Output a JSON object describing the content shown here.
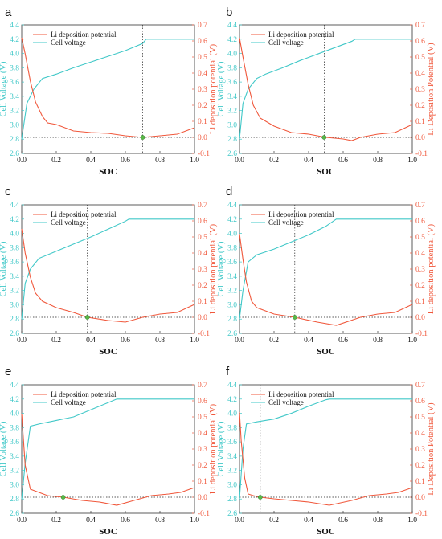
{
  "figure": {
    "colors": {
      "voltage": "#41c8c8",
      "li_potential": "#f0583c",
      "axis": "#333333",
      "marker": "#58b848"
    },
    "axes": {
      "x_label": "SOC",
      "left_label": "Cell Voltage (V)",
      "right_label_a": "Li deposition potential (V)",
      "right_label_b": "Li Deposition Potential (V)",
      "x_ticks": [
        "0.0",
        "0.2",
        "0.4",
        "0.6",
        "0.8",
        "1.0"
      ],
      "left_ticks": [
        "2.6",
        "2.8",
        "3.0",
        "3.2",
        "3.4",
        "3.6",
        "3.8",
        "4.0",
        "4.2",
        "4.4"
      ],
      "right_ticks": [
        "-0.1",
        "0.0",
        "0.1",
        "0.2",
        "0.3",
        "0.4",
        "0.5",
        "0.6",
        "0.7"
      ]
    },
    "legend": {
      "li_label": "Li deposition potential",
      "voltage_label": "Cell voltage"
    }
  },
  "chart_data": [
    {
      "panel": "a",
      "type": "line",
      "marker_soc": 0.7,
      "right_label_key": "a",
      "xlim": [
        0,
        1
      ],
      "ylim_left": [
        2.6,
        4.4
      ],
      "ylim_right": [
        -0.1,
        0.7
      ],
      "voltage": {
        "x": [
          0,
          0.03,
          0.07,
          0.12,
          0.2,
          0.3,
          0.4,
          0.5,
          0.6,
          0.7,
          0.72,
          1.0
        ],
        "y": [
          2.8,
          3.3,
          3.5,
          3.65,
          3.71,
          3.8,
          3.88,
          3.96,
          4.04,
          4.14,
          4.2,
          4.2
        ]
      },
      "li": {
        "x": [
          0,
          0.02,
          0.05,
          0.08,
          0.12,
          0.15,
          0.2,
          0.3,
          0.4,
          0.5,
          0.6,
          0.7,
          0.8,
          0.9,
          1.0
        ],
        "y": [
          0.62,
          0.52,
          0.35,
          0.22,
          0.13,
          0.09,
          0.08,
          0.04,
          0.03,
          0.025,
          0.01,
          0.0,
          0.01,
          0.02,
          0.06
        ]
      }
    },
    {
      "panel": "b",
      "type": "line",
      "marker_soc": 0.49,
      "right_label_key": "b",
      "xlim": [
        0,
        1
      ],
      "ylim_left": [
        2.6,
        4.4
      ],
      "ylim_right": [
        -0.1,
        0.7
      ],
      "voltage": {
        "x": [
          0,
          0.02,
          0.05,
          0.1,
          0.15,
          0.25,
          0.35,
          0.45,
          0.55,
          0.65,
          0.67,
          1.0
        ],
        "y": [
          2.8,
          3.3,
          3.5,
          3.65,
          3.71,
          3.8,
          3.9,
          3.99,
          4.08,
          4.17,
          4.2,
          4.2
        ]
      },
      "li": {
        "x": [
          0,
          0.02,
          0.05,
          0.08,
          0.12,
          0.2,
          0.3,
          0.4,
          0.5,
          0.6,
          0.65,
          0.7,
          0.8,
          0.9,
          1.0
        ],
        "y": [
          0.62,
          0.5,
          0.33,
          0.2,
          0.12,
          0.07,
          0.03,
          0.02,
          0.0,
          -0.01,
          -0.02,
          0.0,
          0.02,
          0.03,
          0.08
        ]
      }
    },
    {
      "panel": "c",
      "type": "line",
      "marker_soc": 0.38,
      "right_label_key": "a",
      "xlim": [
        0,
        1
      ],
      "ylim_left": [
        2.6,
        4.4
      ],
      "ylim_right": [
        -0.1,
        0.7
      ],
      "voltage": {
        "x": [
          0,
          0.02,
          0.05,
          0.1,
          0.2,
          0.3,
          0.4,
          0.5,
          0.6,
          0.62,
          1.0
        ],
        "y": [
          2.8,
          3.3,
          3.5,
          3.65,
          3.75,
          3.85,
          3.95,
          4.06,
          4.17,
          4.2,
          4.2
        ]
      },
      "li": {
        "x": [
          0,
          0.02,
          0.05,
          0.08,
          0.12,
          0.2,
          0.3,
          0.38,
          0.5,
          0.6,
          0.7,
          0.8,
          0.9,
          1.0
        ],
        "y": [
          0.55,
          0.4,
          0.25,
          0.15,
          0.1,
          0.06,
          0.03,
          0.0,
          -0.02,
          -0.03,
          0.0,
          0.02,
          0.03,
          0.08
        ]
      }
    },
    {
      "panel": "d",
      "type": "line",
      "marker_soc": 0.32,
      "right_label_key": "a",
      "xlim": [
        0,
        1
      ],
      "ylim_left": [
        2.6,
        4.4
      ],
      "ylim_right": [
        -0.1,
        0.7
      ],
      "voltage": {
        "x": [
          0,
          0.02,
          0.05,
          0.1,
          0.2,
          0.3,
          0.4,
          0.5,
          0.56,
          1.0
        ],
        "y": [
          2.8,
          3.2,
          3.6,
          3.7,
          3.78,
          3.88,
          3.98,
          4.1,
          4.2,
          4.2
        ]
      },
      "li": {
        "x": [
          0,
          0.02,
          0.04,
          0.07,
          0.1,
          0.15,
          0.2,
          0.32,
          0.45,
          0.56,
          0.7,
          0.8,
          0.9,
          1.0
        ],
        "y": [
          0.52,
          0.36,
          0.22,
          0.1,
          0.06,
          0.04,
          0.02,
          0.0,
          -0.03,
          -0.05,
          0.0,
          0.02,
          0.03,
          0.08
        ]
      }
    },
    {
      "panel": "e",
      "type": "line",
      "marker_soc": 0.24,
      "right_label_key": "a",
      "xlim": [
        0,
        1
      ],
      "ylim_left": [
        2.6,
        4.4
      ],
      "ylim_right": [
        -0.1,
        0.7
      ],
      "voltage": {
        "x": [
          0,
          0.02,
          0.05,
          0.1,
          0.2,
          0.3,
          0.4,
          0.5,
          0.55,
          1.0
        ],
        "y": [
          2.8,
          3.3,
          3.82,
          3.85,
          3.9,
          3.95,
          4.05,
          4.15,
          4.2,
          4.2
        ]
      },
      "li": {
        "x": [
          0,
          0.02,
          0.05,
          0.1,
          0.15,
          0.24,
          0.35,
          0.45,
          0.55,
          0.65,
          0.75,
          0.85,
          0.92,
          1.0
        ],
        "y": [
          0.52,
          0.2,
          0.05,
          0.03,
          0.01,
          0.0,
          -0.02,
          -0.03,
          -0.05,
          -0.02,
          0.01,
          0.02,
          0.03,
          0.06
        ]
      }
    },
    {
      "panel": "f",
      "type": "line",
      "marker_soc": 0.12,
      "right_label_key": "b",
      "xlim": [
        0,
        1
      ],
      "ylim_left": [
        2.6,
        4.4
      ],
      "ylim_right": [
        -0.1,
        0.7
      ],
      "voltage": {
        "x": [
          0,
          0.02,
          0.04,
          0.1,
          0.2,
          0.3,
          0.4,
          0.5,
          0.52,
          1.0
        ],
        "y": [
          2.8,
          3.5,
          3.85,
          3.88,
          3.92,
          4.0,
          4.1,
          4.19,
          4.2,
          4.2
        ]
      },
      "li": {
        "x": [
          0,
          0.01,
          0.03,
          0.05,
          0.08,
          0.12,
          0.2,
          0.3,
          0.4,
          0.52,
          0.65,
          0.75,
          0.85,
          0.92,
          1.0
        ],
        "y": [
          0.53,
          0.35,
          0.12,
          0.02,
          0.01,
          0.0,
          -0.01,
          -0.02,
          -0.03,
          -0.05,
          -0.02,
          0.01,
          0.02,
          0.03,
          0.06
        ]
      }
    }
  ]
}
